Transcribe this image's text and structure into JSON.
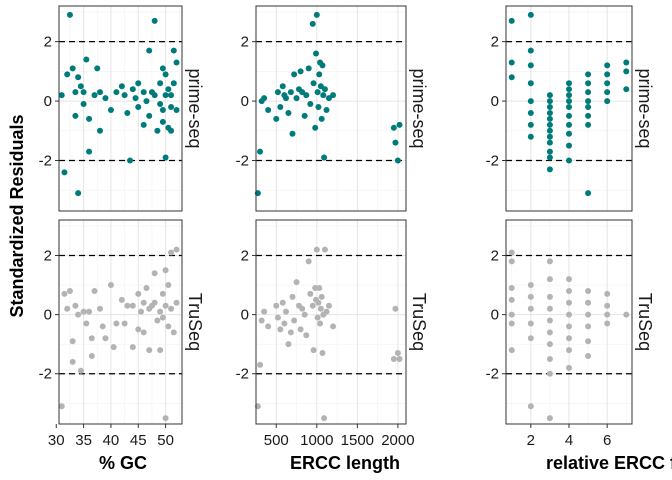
{
  "figure": {
    "ylabel": "Standardized Residuals",
    "colors": {
      "prime_seq": "#007b7b",
      "truseq": "#b3b3b3",
      "grid_major": "#e5e5e5",
      "grid_minor": "#f2f2f2",
      "panel_border": "#333333",
      "ref_line": "#000000"
    },
    "ref_lines": [
      2,
      -2
    ]
  },
  "chart_data": [
    {
      "type": "scatter",
      "row": "prime-seq",
      "col": 0,
      "xlabel": "% GC",
      "ylabel": "Standardized Residuals",
      "facet": "prime-seq",
      "xlim": [
        30.5,
        53
      ],
      "ylim": [
        -3.7,
        3.2
      ],
      "xticks": [
        30,
        35,
        40,
        45,
        50
      ],
      "yticks": [
        2,
        0,
        -2
      ],
      "points": [
        [
          31,
          0.2
        ],
        [
          31.5,
          -2.4
        ],
        [
          32.5,
          2.9
        ],
        [
          32,
          0.9
        ],
        [
          33,
          1.1
        ],
        [
          33.5,
          0.3
        ],
        [
          33.5,
          -0.5
        ],
        [
          34,
          -3.1
        ],
        [
          34,
          0.8
        ],
        [
          34.5,
          0.5
        ],
        [
          35,
          0.3
        ],
        [
          35,
          -0.1
        ],
        [
          35.5,
          1.4
        ],
        [
          36,
          -0.6
        ],
        [
          36,
          -1.7
        ],
        [
          37,
          0.2
        ],
        [
          37.5,
          1.1
        ],
        [
          38,
          0.3
        ],
        [
          38,
          -1.0
        ],
        [
          39,
          0.1
        ],
        [
          40,
          -0.3
        ],
        [
          41,
          0.3
        ],
        [
          42,
          0.5
        ],
        [
          42.5,
          0.2
        ],
        [
          43,
          -0.4
        ],
        [
          43.5,
          -2.0
        ],
        [
          44,
          0.4
        ],
        [
          44.5,
          0.1
        ],
        [
          45,
          -0.2
        ],
        [
          45,
          0.6
        ],
        [
          46,
          0.3
        ],
        [
          46,
          -0.8
        ],
        [
          46.5,
          0.0
        ],
        [
          47,
          1.7
        ],
        [
          47,
          -0.5
        ],
        [
          47.5,
          0.3
        ],
        [
          48,
          2.7
        ],
        [
          48,
          0.2
        ],
        [
          48.5,
          -1.0
        ],
        [
          49,
          0.6
        ],
        [
          49,
          -0.1
        ],
        [
          49.5,
          -0.3
        ],
        [
          49.5,
          1.1
        ],
        [
          49.5,
          -0.7
        ],
        [
          50,
          0.9
        ],
        [
          50,
          0.2
        ],
        [
          50,
          -1.9
        ],
        [
          50.5,
          -0.9
        ],
        [
          50.5,
          0.4
        ],
        [
          51,
          0.2
        ],
        [
          51,
          -0.2
        ],
        [
          51,
          -1.0
        ],
        [
          51.5,
          1.7
        ],
        [
          51.5,
          0.6
        ],
        [
          52,
          -0.3
        ],
        [
          52,
          1.3
        ]
      ]
    },
    {
      "type": "scatter",
      "row": "prime-seq",
      "col": 1,
      "xlabel": "ERCC length",
      "facet": "prime-seq",
      "xlim": [
        250,
        2100
      ],
      "ylim": [
        -3.7,
        3.2
      ],
      "xticks": [
        500,
        1000,
        1500,
        2000
      ],
      "yticks": [
        2,
        0,
        -2
      ],
      "points": [
        [
          273,
          -3.1
        ],
        [
          300,
          -1.7
        ],
        [
          320,
          0.0
        ],
        [
          350,
          0.1
        ],
        [
          400,
          -0.3
        ],
        [
          500,
          -0.6
        ],
        [
          520,
          0.3
        ],
        [
          550,
          -0.2
        ],
        [
          580,
          0.5
        ],
        [
          600,
          0.2
        ],
        [
          620,
          0.1
        ],
        [
          650,
          -0.4
        ],
        [
          680,
          0.3
        ],
        [
          700,
          -1.1
        ],
        [
          720,
          0.9
        ],
        [
          750,
          0.1
        ],
        [
          780,
          0.4
        ],
        [
          800,
          1.0
        ],
        [
          820,
          0.3
        ],
        [
          850,
          -0.5
        ],
        [
          870,
          0.2
        ],
        [
          900,
          1.1
        ],
        [
          920,
          -0.1
        ],
        [
          950,
          2.6
        ],
        [
          960,
          0.6
        ],
        [
          980,
          -0.9
        ],
        [
          990,
          1.6
        ],
        [
          1000,
          2.9
        ],
        [
          1010,
          0.3
        ],
        [
          1020,
          -0.2
        ],
        [
          1030,
          0.9
        ],
        [
          1040,
          1.3
        ],
        [
          1050,
          0.5
        ],
        [
          1060,
          -0.6
        ],
        [
          1070,
          1.2
        ],
        [
          1080,
          0.2
        ],
        [
          1090,
          -1.9
        ],
        [
          1100,
          0.4
        ],
        [
          1120,
          -0.3
        ],
        [
          1150,
          0.1
        ],
        [
          1200,
          0.2
        ],
        [
          1950,
          -0.9
        ],
        [
          1970,
          -1.4
        ],
        [
          2000,
          -2.0
        ],
        [
          2020,
          -0.8
        ]
      ]
    },
    {
      "type": "scatter",
      "row": "prime-seq",
      "col": 2,
      "xlabel": "relative ERCC frequency in mix",
      "facet": "prime-seq",
      "xlim": [
        0.7,
        7.3
      ],
      "ylim": [
        -3.7,
        3.2
      ],
      "xticks": [
        2,
        4,
        6
      ],
      "yticks": [
        2,
        0,
        -2
      ],
      "points": [
        [
          1,
          2.7
        ],
        [
          1,
          1.3
        ],
        [
          1,
          0.8
        ],
        [
          2,
          2.9
        ],
        [
          2,
          1.7
        ],
        [
          2,
          1.2
        ],
        [
          2,
          0.6
        ],
        [
          2,
          0.0
        ],
        [
          2,
          -0.4
        ],
        [
          2,
          -0.8
        ],
        [
          2,
          -1.2
        ],
        [
          3,
          0.2
        ],
        [
          3,
          0.0
        ],
        [
          3,
          -0.2
        ],
        [
          3,
          -0.4
        ],
        [
          3,
          -0.6
        ],
        [
          3,
          -0.8
        ],
        [
          3,
          -1.0
        ],
        [
          3,
          -1.2
        ],
        [
          3,
          -1.4
        ],
        [
          3,
          -1.7
        ],
        [
          3,
          -1.9
        ],
        [
          3,
          -2.3
        ],
        [
          4,
          0.6
        ],
        [
          4,
          0.4
        ],
        [
          4,
          0.2
        ],
        [
          4,
          0.0
        ],
        [
          4,
          -0.2
        ],
        [
          4,
          -0.5
        ],
        [
          4,
          -0.8
        ],
        [
          4,
          -1.1
        ],
        [
          4,
          -1.5
        ],
        [
          4,
          -2.0
        ],
        [
          5,
          0.9
        ],
        [
          5,
          0.6
        ],
        [
          5,
          0.3
        ],
        [
          5,
          0.0
        ],
        [
          5,
          -0.2
        ],
        [
          5,
          -0.5
        ],
        [
          5,
          -0.8
        ],
        [
          5,
          -3.1
        ],
        [
          6,
          1.2
        ],
        [
          6,
          0.9
        ],
        [
          6,
          0.6
        ],
        [
          6,
          0.3
        ],
        [
          6,
          0.0
        ],
        [
          7,
          1.3
        ],
        [
          7,
          1.0
        ],
        [
          7,
          0.4
        ]
      ]
    },
    {
      "type": "scatter",
      "row": "TruSeq",
      "col": 0,
      "xlabel": "% GC",
      "facet": "TruSeq",
      "xlim": [
        30.5,
        53
      ],
      "ylim": [
        -3.7,
        3.2
      ],
      "xticks": [
        30,
        35,
        40,
        45,
        50
      ],
      "yticks": [
        2,
        0,
        -2
      ],
      "points": [
        [
          31,
          -3.1
        ],
        [
          31.5,
          0.7
        ],
        [
          32,
          0.2
        ],
        [
          32.5,
          0.8
        ],
        [
          33,
          -0.9
        ],
        [
          33,
          -1.6
        ],
        [
          33.5,
          0.3
        ],
        [
          34,
          0.0
        ],
        [
          34.5,
          -1.9
        ],
        [
          35,
          0.1
        ],
        [
          35.5,
          -0.3
        ],
        [
          36,
          0.1
        ],
        [
          36.5,
          -1.4
        ],
        [
          36.5,
          -0.8
        ],
        [
          37,
          0.8
        ],
        [
          38,
          0.2
        ],
        [
          38.5,
          -0.4
        ],
        [
          39,
          -0.8
        ],
        [
          40,
          1.0
        ],
        [
          40.5,
          -1.1
        ],
        [
          41,
          -0.3
        ],
        [
          42,
          0.5
        ],
        [
          42.5,
          -0.3
        ],
        [
          43,
          0.3
        ],
        [
          44,
          0.3
        ],
        [
          44,
          -1.1
        ],
        [
          45,
          0.7
        ],
        [
          45,
          -0.5
        ],
        [
          45.5,
          0.1
        ],
        [
          46,
          0.4
        ],
        [
          46,
          -0.6
        ],
        [
          46.5,
          0.9
        ],
        [
          47,
          0.2
        ],
        [
          47,
          -1.2
        ],
        [
          47.5,
          0.3
        ],
        [
          48,
          1.4
        ],
        [
          48,
          0.4
        ],
        [
          48.5,
          -0.2
        ],
        [
          49,
          0.1
        ],
        [
          49,
          -1.2
        ],
        [
          49.5,
          0.7
        ],
        [
          49.5,
          -0.1
        ],
        [
          50,
          1.5
        ],
        [
          50,
          0.3
        ],
        [
          50,
          -3.5
        ],
        [
          50.5,
          1.0
        ],
        [
          50.5,
          -0.4
        ],
        [
          51,
          2.1
        ],
        [
          51,
          0.2
        ],
        [
          51.5,
          -0.6
        ],
        [
          52,
          2.2
        ],
        [
          52,
          0.4
        ]
      ]
    },
    {
      "type": "scatter",
      "row": "TruSeq",
      "col": 1,
      "xlabel": "ERCC length",
      "facet": "TruSeq",
      "xlim": [
        250,
        2100
      ],
      "ylim": [
        -3.7,
        3.2
      ],
      "xticks": [
        500,
        1000,
        1500,
        2000
      ],
      "yticks": [
        2,
        0,
        -2
      ],
      "points": [
        [
          273,
          -3.1
        ],
        [
          300,
          -1.7
        ],
        [
          320,
          -0.2
        ],
        [
          350,
          0.1
        ],
        [
          400,
          -0.4
        ],
        [
          500,
          0.3
        ],
        [
          520,
          -0.1
        ],
        [
          550,
          -0.5
        ],
        [
          580,
          0.4
        ],
        [
          600,
          -0.3
        ],
        [
          620,
          0.1
        ],
        [
          650,
          -1.0
        ],
        [
          680,
          -0.6
        ],
        [
          700,
          0.6
        ],
        [
          720,
          -0.2
        ],
        [
          750,
          1.1
        ],
        [
          780,
          0.3
        ],
        [
          800,
          -0.5
        ],
        [
          820,
          0.2
        ],
        [
          850,
          0.0
        ],
        [
          870,
          -0.7
        ],
        [
          900,
          1.8
        ],
        [
          920,
          0.7
        ],
        [
          950,
          0.3
        ],
        [
          960,
          -1.2
        ],
        [
          980,
          0.9
        ],
        [
          990,
          0.5
        ],
        [
          1000,
          2.2
        ],
        [
          1010,
          -0.1
        ],
        [
          1020,
          0.4
        ],
        [
          1030,
          0.9
        ],
        [
          1040,
          -0.3
        ],
        [
          1050,
          0.2
        ],
        [
          1060,
          0.6
        ],
        [
          1070,
          -1.3
        ],
        [
          1080,
          0.0
        ],
        [
          1090,
          -3.5
        ],
        [
          1100,
          2.2
        ],
        [
          1120,
          0.1
        ],
        [
          1150,
          0.3
        ],
        [
          1200,
          -0.4
        ],
        [
          1950,
          -1.5
        ],
        [
          1970,
          0.2
        ],
        [
          2000,
          -1.3
        ],
        [
          2020,
          -1.5
        ]
      ]
    },
    {
      "type": "scatter",
      "row": "TruSeq",
      "col": 2,
      "xlabel": "relative ERCC frequency in mix",
      "facet": "TruSeq",
      "xlim": [
        0.7,
        7.3
      ],
      "ylim": [
        -3.7,
        3.2
      ],
      "xticks": [
        2,
        4,
        6
      ],
      "yticks": [
        2,
        0,
        -2
      ],
      "points": [
        [
          1,
          2.1
        ],
        [
          1,
          1.8
        ],
        [
          1,
          0.9
        ],
        [
          1,
          0.5
        ],
        [
          1,
          0.0
        ],
        [
          1,
          -0.3
        ],
        [
          1,
          -1.2
        ],
        [
          2,
          1.0
        ],
        [
          2,
          0.6
        ],
        [
          2,
          0.2
        ],
        [
          2,
          -0.3
        ],
        [
          2,
          -0.8
        ],
        [
          2,
          -3.1
        ],
        [
          3,
          1.8
        ],
        [
          3,
          1.2
        ],
        [
          3,
          0.6
        ],
        [
          3,
          0.2
        ],
        [
          3,
          -0.2
        ],
        [
          3,
          -0.6
        ],
        [
          3,
          -1.0
        ],
        [
          3,
          -1.5
        ],
        [
          3,
          -2.0
        ],
        [
          3,
          -3.5
        ],
        [
          4,
          1.2
        ],
        [
          4,
          0.8
        ],
        [
          4,
          0.4
        ],
        [
          4,
          0.0
        ],
        [
          4,
          -0.4
        ],
        [
          4,
          -0.8
        ],
        [
          4,
          -1.2
        ],
        [
          4,
          -1.8
        ],
        [
          5,
          0.8
        ],
        [
          5,
          0.4
        ],
        [
          5,
          0.0
        ],
        [
          5,
          -0.4
        ],
        [
          5,
          -0.9
        ],
        [
          5,
          -1.4
        ],
        [
          6,
          0.7
        ],
        [
          6,
          0.3
        ],
        [
          6,
          0.0
        ],
        [
          6,
          -0.3
        ],
        [
          7,
          0.0
        ]
      ]
    }
  ]
}
